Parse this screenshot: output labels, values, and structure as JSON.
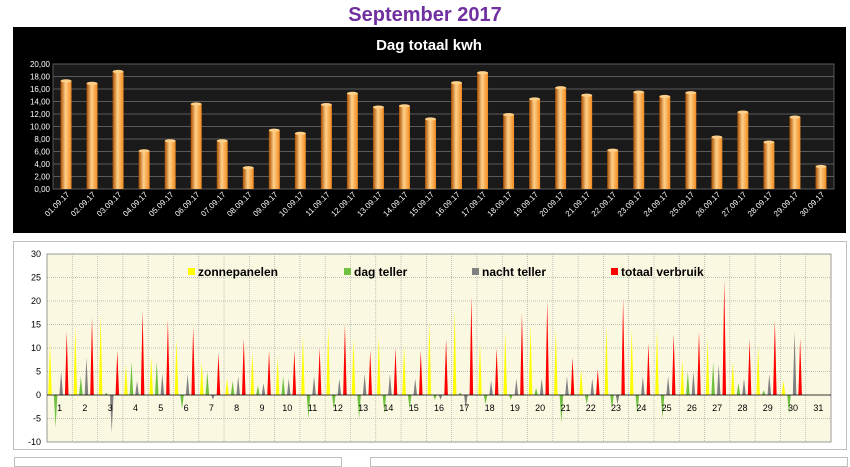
{
  "page": {
    "title": "September 2017"
  },
  "colors": {
    "title": "#7030a0",
    "bar": "#f28a1e",
    "bar_dark": "#a94e00",
    "bar_light": "#ffd08a",
    "chart1_bg": "#000000",
    "zonnepanelen": "#ffff00",
    "dag_teller": "#70c040",
    "nacht_teller": "#808080",
    "totaal_verbruik": "#ff0000",
    "plot2_bg": "#fbf8e2",
    "grid2": "#aaaaaa"
  },
  "chart_data": [
    {
      "type": "bar",
      "title": "Dag totaal kwh",
      "xlabel": "",
      "ylabel": "",
      "ylim": [
        0,
        20
      ],
      "yticks": [
        0,
        2,
        4,
        6,
        8,
        10,
        12,
        14,
        16,
        18,
        20
      ],
      "ytick_labels": [
        "0,00",
        "2,00",
        "4,00",
        "6,00",
        "8,00",
        "10,00",
        "12,00",
        "14,00",
        "16,00",
        "18,00",
        "20,00"
      ],
      "grid": true,
      "categories": [
        "01.09.17",
        "02.09.17",
        "03.09.17",
        "04.09.17",
        "05.09.17",
        "06.09.17",
        "07.09.17",
        "08.09.17",
        "09.09.17",
        "10.09.17",
        "11.09.17",
        "12.09.17",
        "13.09.17",
        "14.09.17",
        "15.09.17",
        "16.09.17",
        "17.09.17",
        "18.09.17",
        "19.09.17",
        "20.09.17",
        "21.09.17",
        "22.09.17",
        "23.09.17",
        "24.09.17",
        "25.09.17",
        "26.09.17",
        "27.09.17",
        "28.09.17",
        "29.09.17",
        "30.09.17"
      ],
      "values": [
        17.3,
        16.9,
        18.8,
        6.1,
        7.7,
        13.6,
        7.7,
        3.4,
        9.4,
        8.9,
        13.5,
        15.3,
        13.1,
        13.3,
        11.2,
        17.0,
        18.6,
        11.9,
        14.4,
        16.2,
        15.0,
        6.2,
        15.5,
        14.8,
        15.4,
        8.3,
        12.3,
        7.5,
        11.5,
        3.6
      ],
      "legend": "none"
    },
    {
      "type": "bar",
      "title": "",
      "xlabel": "",
      "ylabel": "",
      "ylim": [
        -10,
        30
      ],
      "yticks": [
        -10,
        -5,
        0,
        5,
        10,
        15,
        20,
        25,
        30
      ],
      "ytick_labels": [
        "-10",
        "-5",
        "0",
        "5",
        "10",
        "15",
        "20",
        "25",
        "30"
      ],
      "grid": true,
      "legend": "top",
      "categories": [
        "1",
        "2",
        "3",
        "4",
        "5",
        "6",
        "7",
        "8",
        "9",
        "10",
        "11",
        "12",
        "13",
        "14",
        "15",
        "16",
        "17",
        "18",
        "19",
        "20",
        "21",
        "22",
        "23",
        "24",
        "25",
        "26",
        "27",
        "28",
        "29",
        "30",
        "31"
      ],
      "series": [
        {
          "name": "zonnepanelen",
          "values": [
            11.0,
            14.5,
            17.0,
            6.5,
            8.0,
            12.0,
            7.0,
            3.5,
            9.0,
            8.0,
            12.5,
            14.5,
            12.0,
            12.5,
            10.5,
            15.5,
            18.0,
            11.0,
            13.5,
            15.0,
            14.0,
            5.5,
            14.5,
            14.0,
            14.0,
            7.5,
            12.0,
            7.0,
            10.5,
            3.0,
            0
          ]
        },
        {
          "name": "dag teller",
          "values": [
            -7.0,
            4.0,
            0.5,
            7.0,
            7.0,
            -3.0,
            5.0,
            3.0,
            2.0,
            4.0,
            -5.0,
            -3.0,
            -5.0,
            -4.0,
            -3.0,
            -1.0,
            0.5,
            -2.0,
            -1.0,
            1.5,
            -6.0,
            -2.0,
            -3.0,
            -4.0,
            -5.0,
            5.0,
            7.0,
            2.5,
            1.0,
            -4.0,
            0
          ]
        },
        {
          "name": "nacht teller",
          "values": [
            5.0,
            8.0,
            -8.0,
            3.0,
            4.5,
            4.5,
            -1.0,
            4.0,
            2.5,
            3.5,
            4.0,
            3.5,
            4.5,
            4.5,
            3.5,
            -1.0,
            -3.0,
            3.0,
            3.5,
            3.5,
            4.0,
            3.5,
            -2.0,
            4.0,
            4.0,
            5.0,
            6.5,
            3.5,
            4.5,
            13.5,
            0
          ]
        },
        {
          "name": "totaal verbruik",
          "values": [
            13.5,
            16.5,
            9.5,
            18.0,
            16.0,
            14.5,
            9.0,
            12.0,
            9.5,
            9.5,
            10.0,
            15.0,
            9.5,
            10.0,
            9.5,
            12.0,
            21.0,
            10.0,
            17.5,
            20.0,
            8.0,
            5.5,
            20.5,
            11.0,
            13.0,
            13.5,
            24.5,
            12.0,
            16.0,
            12.0,
            0
          ]
        }
      ]
    }
  ]
}
